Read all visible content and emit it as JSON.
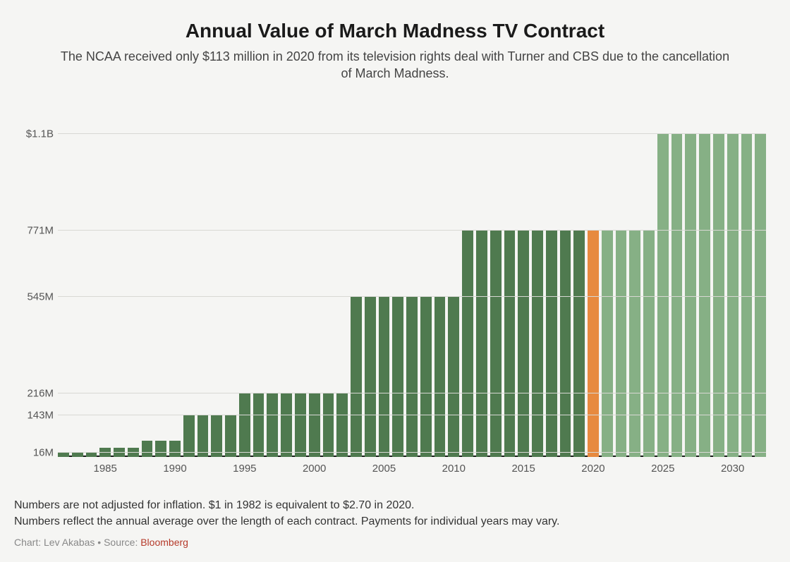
{
  "header": {
    "title": "Annual Value of March Madness TV Contract",
    "title_fontsize": 28,
    "subtitle": "The NCAA received only $113 million in 2020 from its television rights deal with Turner and CBS due to the cancellation of March Madness.",
    "subtitle_fontsize": 18
  },
  "chart": {
    "type": "bar",
    "background_color": "#f5f5f3",
    "grid_color": "#d8d8d4",
    "axis_color": "#1a1a1a",
    "tick_fontsize": 15,
    "tick_color": "#555555",
    "ymax": 1180,
    "ymin": 0,
    "yticks": [
      {
        "value": 16,
        "label": "16M"
      },
      {
        "value": 143,
        "label": "143M"
      },
      {
        "value": 216,
        "label": "216M"
      },
      {
        "value": 545,
        "label": "545M"
      },
      {
        "value": 771,
        "label": "771M"
      },
      {
        "value": 1100,
        "label": "$1.1B"
      }
    ],
    "xtick_years": [
      1985,
      1990,
      1995,
      2000,
      2005,
      2010,
      2015,
      2020,
      2025,
      2030
    ],
    "colors": {
      "past": "#4f7a4f",
      "highlight": "#e78a3f",
      "future": "#86b085"
    },
    "bars": [
      {
        "year": 1982,
        "value": 16,
        "color": "past"
      },
      {
        "year": 1983,
        "value": 16,
        "color": "past"
      },
      {
        "year": 1984,
        "value": 16,
        "color": "past"
      },
      {
        "year": 1985,
        "value": 32,
        "color": "past"
      },
      {
        "year": 1986,
        "value": 32,
        "color": "past"
      },
      {
        "year": 1987,
        "value": 32,
        "color": "past"
      },
      {
        "year": 1988,
        "value": 56,
        "color": "past"
      },
      {
        "year": 1989,
        "value": 56,
        "color": "past"
      },
      {
        "year": 1990,
        "value": 56,
        "color": "past"
      },
      {
        "year": 1991,
        "value": 143,
        "color": "past"
      },
      {
        "year": 1992,
        "value": 143,
        "color": "past"
      },
      {
        "year": 1993,
        "value": 143,
        "color": "past"
      },
      {
        "year": 1994,
        "value": 143,
        "color": "past"
      },
      {
        "year": 1995,
        "value": 216,
        "color": "past"
      },
      {
        "year": 1996,
        "value": 216,
        "color": "past"
      },
      {
        "year": 1997,
        "value": 216,
        "color": "past"
      },
      {
        "year": 1998,
        "value": 216,
        "color": "past"
      },
      {
        "year": 1999,
        "value": 216,
        "color": "past"
      },
      {
        "year": 2000,
        "value": 216,
        "color": "past"
      },
      {
        "year": 2001,
        "value": 216,
        "color": "past"
      },
      {
        "year": 2002,
        "value": 216,
        "color": "past"
      },
      {
        "year": 2003,
        "value": 545,
        "color": "past"
      },
      {
        "year": 2004,
        "value": 545,
        "color": "past"
      },
      {
        "year": 2005,
        "value": 545,
        "color": "past"
      },
      {
        "year": 2006,
        "value": 545,
        "color": "past"
      },
      {
        "year": 2007,
        "value": 545,
        "color": "past"
      },
      {
        "year": 2008,
        "value": 545,
        "color": "past"
      },
      {
        "year": 2009,
        "value": 545,
        "color": "past"
      },
      {
        "year": 2010,
        "value": 545,
        "color": "past"
      },
      {
        "year": 2011,
        "value": 771,
        "color": "past"
      },
      {
        "year": 2012,
        "value": 771,
        "color": "past"
      },
      {
        "year": 2013,
        "value": 771,
        "color": "past"
      },
      {
        "year": 2014,
        "value": 771,
        "color": "past"
      },
      {
        "year": 2015,
        "value": 771,
        "color": "past"
      },
      {
        "year": 2016,
        "value": 771,
        "color": "past"
      },
      {
        "year": 2017,
        "value": 771,
        "color": "past"
      },
      {
        "year": 2018,
        "value": 771,
        "color": "past"
      },
      {
        "year": 2019,
        "value": 771,
        "color": "past"
      },
      {
        "year": 2020,
        "value": 771,
        "color": "highlight"
      },
      {
        "year": 2021,
        "value": 771,
        "color": "future"
      },
      {
        "year": 2022,
        "value": 771,
        "color": "future"
      },
      {
        "year": 2023,
        "value": 771,
        "color": "future"
      },
      {
        "year": 2024,
        "value": 771,
        "color": "future"
      },
      {
        "year": 2025,
        "value": 1100,
        "color": "future"
      },
      {
        "year": 2026,
        "value": 1100,
        "color": "future"
      },
      {
        "year": 2027,
        "value": 1100,
        "color": "future"
      },
      {
        "year": 2028,
        "value": 1100,
        "color": "future"
      },
      {
        "year": 2029,
        "value": 1100,
        "color": "future"
      },
      {
        "year": 2030,
        "value": 1100,
        "color": "future"
      },
      {
        "year": 2031,
        "value": 1100,
        "color": "future"
      },
      {
        "year": 2032,
        "value": 1100,
        "color": "future"
      }
    ]
  },
  "footnote": {
    "line1": "Numbers are not adjusted for inflation. $1 in 1982 is equivalent to $2.70 in 2020.",
    "line2": "Numbers reflect the annual average over the length of each contract. Payments for individual years may vary.",
    "fontsize": 16
  },
  "credit": {
    "prefix": "Chart: Lev Akabas • Source: ",
    "source": "Bloomberg",
    "fontsize": 14
  }
}
